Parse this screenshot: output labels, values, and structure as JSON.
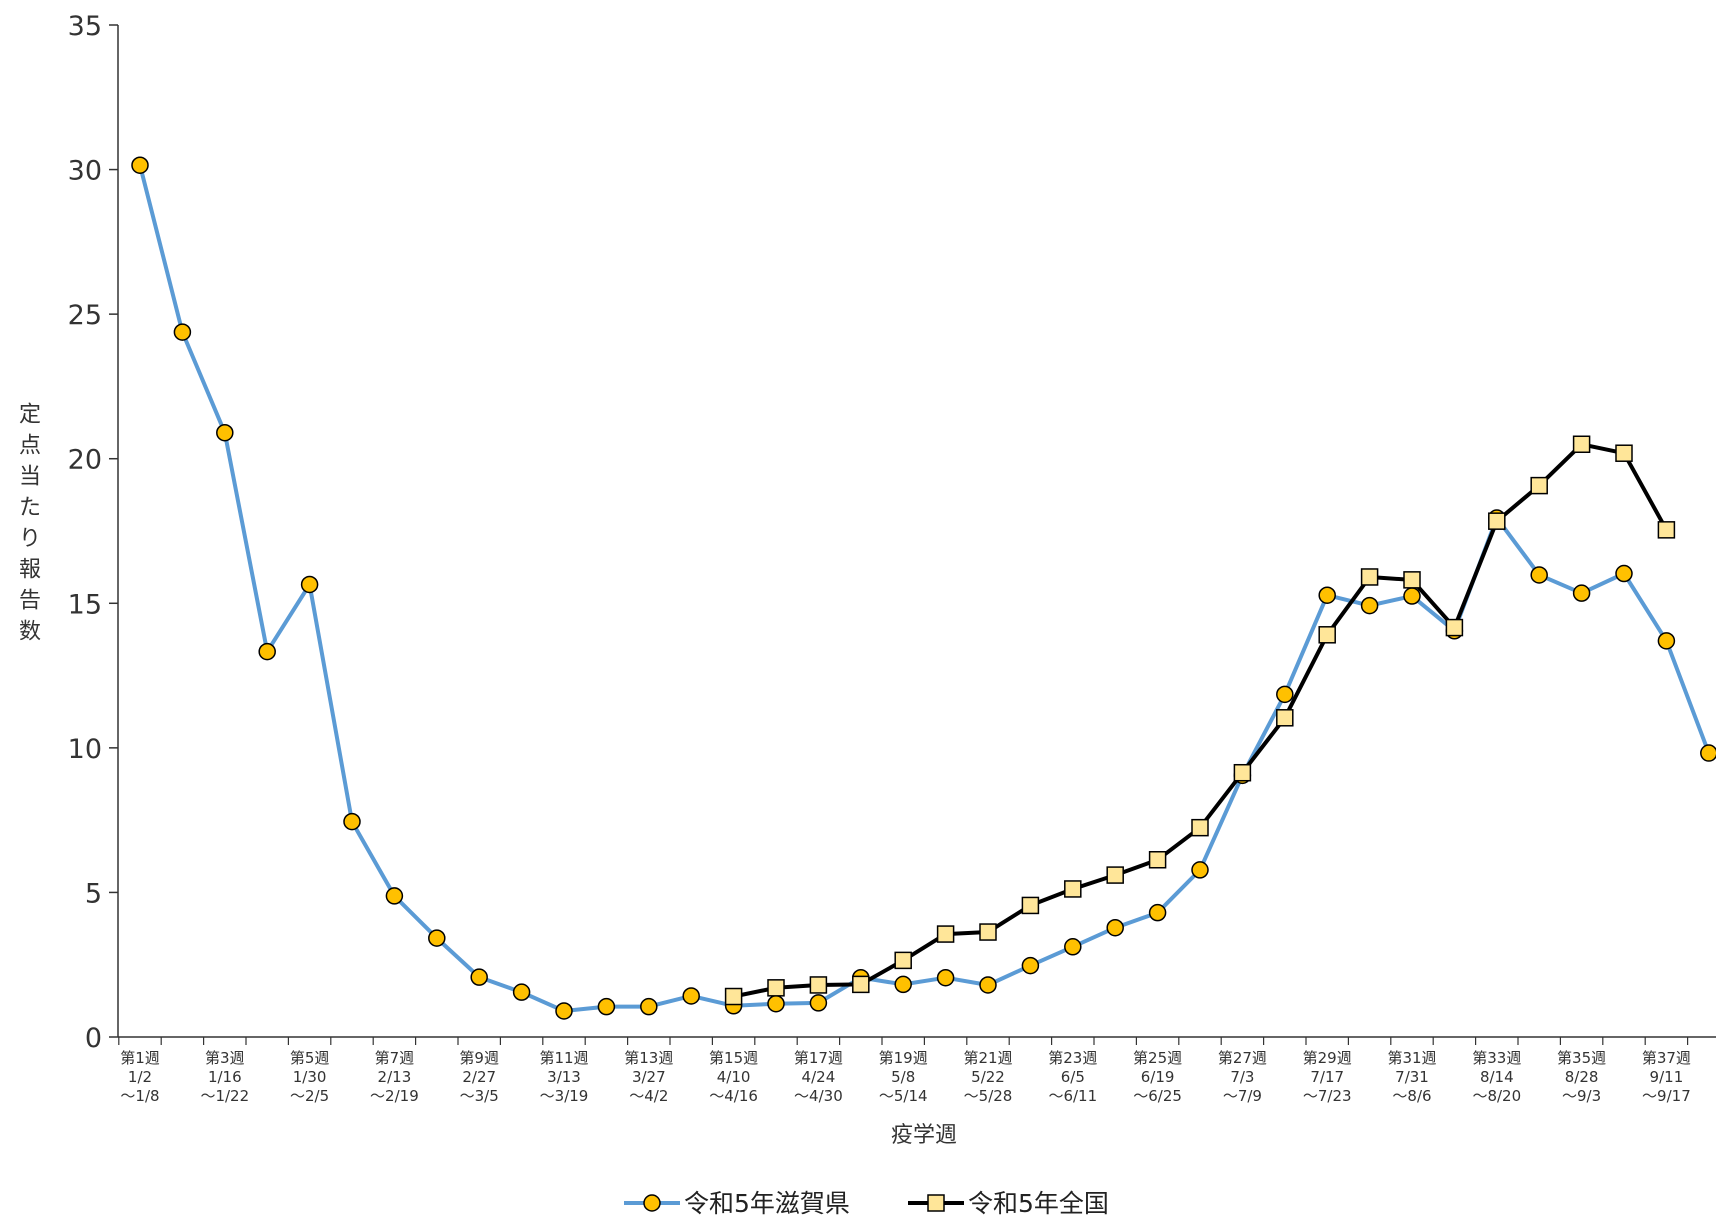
{
  "chart_data": {
    "type": "line",
    "xlabel": "疫学週",
    "ylabel": "定点当たり報告数",
    "ylim": [
      0,
      35
    ],
    "yticks": [
      0,
      5,
      10,
      15,
      20,
      25,
      30,
      35
    ],
    "x_labels": [
      [
        "第1週",
        "1/2",
        "～1/8"
      ],
      [
        "第3週",
        "1/16",
        "～1/22"
      ],
      [
        "第5週",
        "1/30",
        "～2/5"
      ],
      [
        "第7週",
        "2/13",
        "～2/19"
      ],
      [
        "第9週",
        "2/27",
        "～3/5"
      ],
      [
        "第11週",
        "3/13",
        "～3/19"
      ],
      [
        "第13週",
        "3/27",
        "～4/2"
      ],
      [
        "第15週",
        "4/10",
        "～4/16"
      ],
      [
        "第17週",
        "4/24",
        "～4/30"
      ],
      [
        "第19週",
        "5/8",
        "～5/14"
      ],
      [
        "第21週",
        "5/22",
        "～5/28"
      ],
      [
        "第23週",
        "6/5",
        "～6/11"
      ],
      [
        "第25週",
        "6/19",
        "～6/25"
      ],
      [
        "第27週",
        "7/3",
        "～7/9"
      ],
      [
        "第29週",
        "7/17",
        "～7/23"
      ],
      [
        "第31週",
        "7/31",
        "～8/6"
      ],
      [
        "第33週",
        "8/14",
        "～8/20"
      ],
      [
        "第35週",
        "8/28",
        "～9/3"
      ],
      [
        "第37週",
        "9/11",
        "～9/17"
      ]
    ],
    "weeks": [
      1,
      2,
      3,
      4,
      5,
      6,
      7,
      8,
      9,
      10,
      11,
      12,
      13,
      14,
      15,
      16,
      17,
      18,
      19,
      20,
      21,
      22,
      23,
      24,
      25,
      26,
      27,
      28,
      29,
      30,
      31,
      32,
      33,
      34,
      35,
      36,
      37,
      38
    ],
    "series": [
      {
        "name": "令和5年滋賀県",
        "color": "#5b9bd5",
        "marker": "circle",
        "marker_color": "#ffc000",
        "start_week": 1,
        "values": [
          30.15,
          24.38,
          20.9,
          13.33,
          15.65,
          7.45,
          4.88,
          3.42,
          2.07,
          1.55,
          0.9,
          1.05,
          1.05,
          1.42,
          1.08,
          1.15,
          1.18,
          2.05,
          1.82,
          2.05,
          1.8,
          2.47,
          3.12,
          3.78,
          4.3,
          5.78,
          9.05,
          11.85,
          15.28,
          14.92,
          15.25,
          14.05,
          17.95,
          15.98,
          15.35,
          16.03,
          13.7,
          9.82
        ]
      },
      {
        "name": "令和5年全国",
        "color": "#000000",
        "marker": "square",
        "marker_color": "#ffe699",
        "start_week": 15,
        "values": [
          1.4,
          1.7,
          1.8,
          1.82,
          2.65,
          3.56,
          3.63,
          4.55,
          5.12,
          5.6,
          6.13,
          7.24,
          9.14,
          11.04,
          13.91,
          15.91,
          15.81,
          14.16,
          17.84,
          19.07,
          20.5,
          20.19,
          17.54
        ]
      }
    ]
  }
}
